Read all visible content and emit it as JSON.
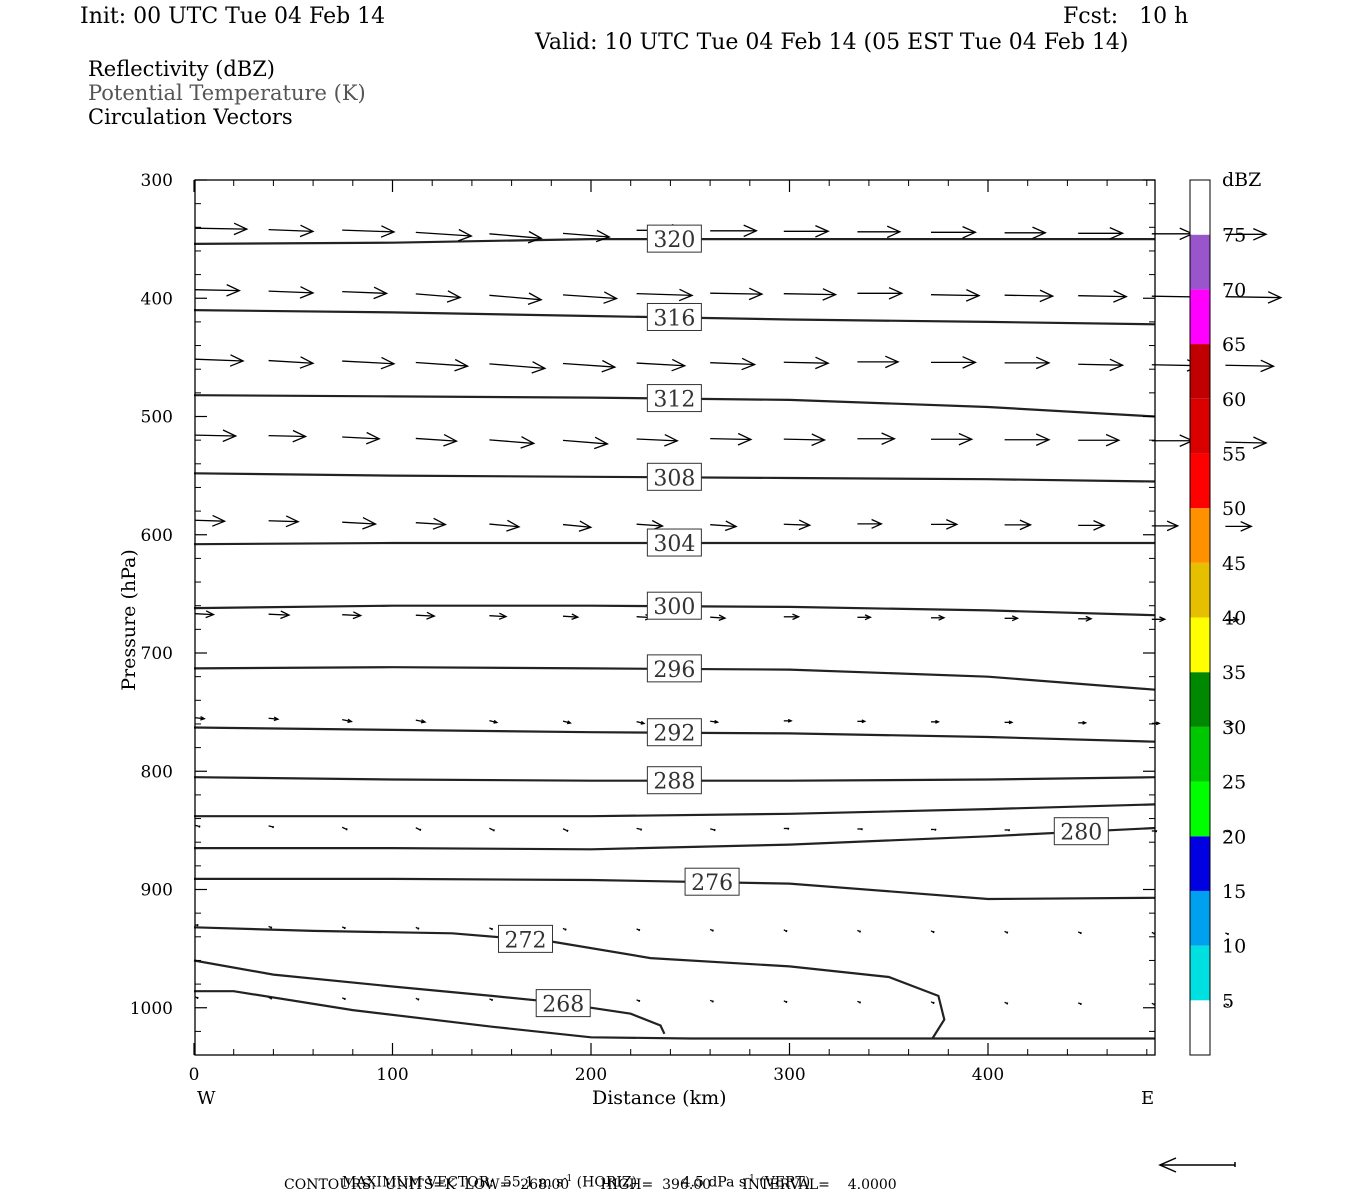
{
  "header": {
    "init": "Init: 00 UTC Tue 04 Feb 14",
    "fcst": "Fcst:   10 h",
    "valid": "Valid: 10 UTC Tue 04 Feb 14 (05 EST Tue 04 Feb 14)"
  },
  "fields": [
    "Reflectivity (dBZ)",
    "Potential Temperature (K)",
    "Circulation Vectors"
  ],
  "footer": {
    "max_vector_label": "MAXIMUM VECTOR:",
    "max_horiz": "55.1 m s",
    "horiz_tag": "(HORIZ)",
    "max_vert": "4.5 dPa s",
    "vert_tag": "(VERT)",
    "exp": "-1",
    "contours": "CONTOURS:  UNITS=K  LOW=  268.00       HIGH=  396.00       INTERVAL=    4.0000"
  },
  "colorbar": {
    "title": "dBZ",
    "levels": [
      "5",
      "10",
      "15",
      "20",
      "25",
      "30",
      "35",
      "40",
      "45",
      "50",
      "55",
      "60",
      "65",
      "70",
      "75"
    ],
    "colors": [
      "#ffffff",
      "#00e0e0",
      "#00a0f0",
      "#0000e0",
      "#00ff00",
      "#00c800",
      "#008800",
      "#ffff00",
      "#e6c000",
      "#ff9000",
      "#ff0000",
      "#d80000",
      "#c00000",
      "#ff00ff",
      "#9955cc",
      "#ffffff"
    ]
  },
  "chart_data": {
    "type": "contour",
    "xlabel": "Distance (km)",
    "ylabel": "Pressure (hPa)",
    "xlim": [
      0,
      485
    ],
    "ylim": [
      300,
      1030
    ],
    "xticks": [
      "0",
      "100",
      "200",
      "300",
      "400"
    ],
    "yticks": [
      "300",
      "400",
      "500",
      "600",
      "700",
      "800",
      "900",
      "1000"
    ],
    "x_left_label": "W",
    "x_right_label": "E",
    "theta_contours": [
      {
        "label": "320",
        "x": [
          0,
          100,
          200,
          300,
          400,
          485
        ],
        "p": [
          354,
          353,
          350,
          350,
          350,
          350
        ],
        "label_x": 242
      },
      {
        "label": "316",
        "x": [
          0,
          100,
          200,
          300,
          400,
          485
        ],
        "p": [
          410,
          412,
          415,
          418,
          420,
          422
        ],
        "label_x": 242
      },
      {
        "label": "312",
        "x": [
          0,
          100,
          200,
          300,
          400,
          485
        ],
        "p": [
          482,
          483,
          484,
          486,
          492,
          500
        ],
        "label_x": 242
      },
      {
        "label": "308",
        "x": [
          0,
          100,
          200,
          300,
          400,
          485
        ],
        "p": [
          548,
          550,
          551,
          552,
          553,
          555
        ],
        "label_x": 242
      },
      {
        "label": "304",
        "x": [
          0,
          100,
          200,
          300,
          400,
          485
        ],
        "p": [
          608,
          607,
          607,
          607,
          607,
          607
        ],
        "label_x": 242
      },
      {
        "label": "300",
        "x": [
          0,
          100,
          200,
          300,
          400,
          485
        ],
        "p": [
          662,
          660,
          660,
          661,
          664,
          668
        ],
        "label_x": 242
      },
      {
        "label": "296",
        "x": [
          0,
          100,
          200,
          300,
          400,
          485
        ],
        "p": [
          713,
          712,
          713,
          714,
          720,
          731
        ],
        "label_x": 242
      },
      {
        "label": "292",
        "x": [
          0,
          100,
          200,
          300,
          400,
          485
        ],
        "p": [
          763,
          765,
          767,
          768,
          771,
          775
        ],
        "label_x": 242
      },
      {
        "label": "288",
        "x": [
          0,
          100,
          200,
          300,
          400,
          485
        ],
        "p": [
          805,
          807,
          808,
          808,
          807,
          805
        ],
        "label_x": 242
      },
      {
        "label": "",
        "x": [
          0,
          100,
          200,
          300,
          400,
          485
        ],
        "p": [
          838,
          838,
          838,
          836,
          832,
          828
        ],
        "label_x": null
      },
      {
        "label": "280",
        "x": [
          0,
          100,
          200,
          300,
          400,
          485
        ],
        "p": [
          865,
          865,
          866,
          862,
          855,
          848
        ],
        "label_x": 447
      },
      {
        "label": "276",
        "x": [
          0,
          100,
          200,
          300,
          400,
          485
        ],
        "p": [
          891,
          891,
          892,
          895,
          908,
          907
        ],
        "label_x": 261
      },
      {
        "label": "272",
        "x": [
          0,
          60,
          130,
          180,
          230,
          300,
          350,
          375,
          378,
          372
        ],
        "p": [
          932,
          935,
          937,
          944,
          958,
          965,
          974,
          990,
          1010,
          1026
        ],
        "label_x": 167
      },
      {
        "label": "268",
        "x": [
          0,
          40,
          100,
          150,
          180,
          220,
          235,
          237
        ],
        "p": [
          960,
          972,
          982,
          990,
          995,
          1005,
          1015,
          1022
        ],
        "label_x": 186
      },
      {
        "label": "",
        "x": [
          0,
          20,
          80,
          150,
          200,
          250,
          300,
          400,
          485
        ],
        "p": [
          986,
          986,
          1002,
          1016,
          1025,
          1026,
          1026,
          1026,
          1026
        ],
        "label_x": null
      }
    ],
    "vector_rows": [
      {
        "p": 340,
        "dx": [
          28,
          24,
          28,
          30,
          28,
          25,
          26,
          25,
          24,
          23,
          24,
          22,
          24,
          22,
          22
        ],
        "dp": [
          1,
          2,
          2,
          4,
          5,
          4,
          0,
          0,
          0,
          0,
          0,
          0,
          0,
          0,
          0
        ]
      },
      {
        "p": 392,
        "dx": [
          24,
          24,
          24,
          24,
          28,
          29,
          30,
          28,
          28,
          24,
          26,
          26,
          26,
          30,
          30
        ],
        "dp": [
          1,
          2,
          2,
          4,
          5,
          4,
          2,
          1,
          1,
          0,
          1,
          1,
          1,
          1,
          1
        ]
      },
      {
        "p": 450,
        "dx": [
          26,
          24,
          28,
          28,
          30,
          28,
          26,
          24,
          24,
          22,
          24,
          24,
          24,
          26,
          26
        ],
        "dp": [
          2,
          3,
          3,
          4,
          5,
          4,
          3,
          2,
          1,
          0,
          0,
          0,
          1,
          1,
          1
        ]
      },
      {
        "p": 515,
        "dx": [
          22,
          20,
          20,
          22,
          24,
          24,
          22,
          22,
          22,
          20,
          22,
          24,
          22,
          22,
          22
        ],
        "dp": [
          1,
          1,
          2,
          3,
          4,
          4,
          2,
          1,
          1,
          0,
          0,
          0,
          0,
          0,
          1
        ]
      },
      {
        "p": 587,
        "dx": [
          16,
          16,
          18,
          16,
          16,
          15,
          14,
          14,
          14,
          13,
          14,
          14,
          14,
          14,
          14
        ],
        "dp": [
          1,
          1,
          2,
          2,
          3,
          3,
          2,
          2,
          1,
          0,
          0,
          0,
          0,
          0,
          0
        ]
      },
      {
        "p": 666,
        "dx": [
          10,
          11,
          10,
          10,
          9,
          8,
          8,
          8,
          8,
          7,
          7,
          7,
          7,
          7,
          7
        ],
        "dp": [
          1,
          1,
          1,
          1,
          1,
          1,
          1,
          1,
          0,
          0,
          0,
          0,
          0,
          0,
          0
        ]
      },
      {
        "p": 754,
        "dx": [
          5,
          5,
          5,
          5,
          4,
          4,
          4,
          4,
          4,
          4,
          4,
          4,
          4,
          4,
          4
        ],
        "dp": [
          1,
          1,
          2,
          2,
          2,
          2,
          2,
          1,
          0,
          0,
          0,
          0,
          0,
          0,
          0
        ]
      },
      {
        "p": 845,
        "dx": [
          2,
          2,
          2,
          2,
          2,
          2,
          2,
          2,
          2,
          2,
          2,
          2,
          2,
          2,
          2
        ],
        "dp": [
          1,
          1,
          2,
          2,
          2,
          2,
          1,
          1,
          0,
          0,
          0,
          0,
          0,
          0,
          0
        ]
      },
      {
        "p": 930,
        "dx": [
          1,
          1,
          1,
          1,
          1,
          1,
          1,
          1,
          1,
          1,
          1,
          1,
          1,
          1,
          1
        ],
        "dp": [
          0,
          1,
          1,
          1,
          1,
          1,
          1,
          1,
          1,
          1,
          1,
          1,
          1,
          1,
          1
        ]
      },
      {
        "p": 990,
        "dx": [
          1,
          1,
          1,
          1,
          1,
          1,
          1,
          1,
          1,
          1,
          1,
          1,
          1,
          1,
          1
        ],
        "dp": [
          1,
          1,
          1,
          1,
          1,
          1,
          1,
          1,
          1,
          1,
          1,
          1,
          1,
          1,
          1
        ]
      }
    ]
  }
}
